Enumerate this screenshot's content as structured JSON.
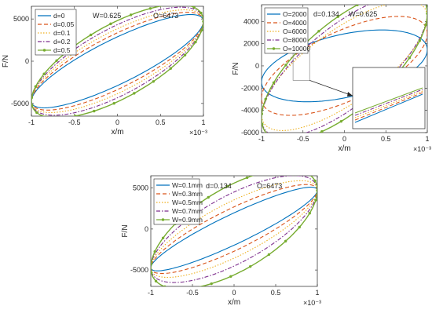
{
  "chart_data": [
    {
      "type": "line",
      "panel": "top-left",
      "xlabel": "x/m",
      "ylabel": "F/N",
      "x_exponent": "×10⁻³",
      "xlim": [
        -1,
        1
      ],
      "ylim": [
        -6500,
        6500
      ],
      "xticks": [
        -1,
        -0.5,
        0,
        0.5,
        1
      ],
      "yticks": [
        -5000,
        0,
        5000
      ],
      "annotations": [
        "W=0.625",
        "O=6473"
      ],
      "legend_position": "top-left",
      "series": [
        {
          "name": "d=0",
          "color": "#0072BD",
          "style": "solid",
          "params": {
            "d": 0,
            "W": 0.625,
            "O": 6473
          }
        },
        {
          "name": "d=0.05",
          "color": "#D95319",
          "style": "dash",
          "params": {
            "d": 0.05,
            "W": 0.625,
            "O": 6473
          }
        },
        {
          "name": "d=0.1",
          "color": "#EDB120",
          "style": "dot",
          "params": {
            "d": 0.1,
            "W": 0.625,
            "O": 6473
          }
        },
        {
          "name": "d=0.2",
          "color": "#7E2F8E",
          "style": "dashdot",
          "params": {
            "d": 0.2,
            "W": 0.625,
            "O": 6473
          }
        },
        {
          "name": "d=0.5",
          "color": "#77AC30",
          "style": "solid-marker",
          "params": {
            "d": 0.5,
            "W": 0.625,
            "O": 6473
          }
        }
      ]
    },
    {
      "type": "line",
      "panel": "top-right",
      "xlabel": "x/m",
      "ylabel": "F/N",
      "x_exponent": "×10⁻³",
      "xlim": [
        -1,
        1
      ],
      "ylim": [
        -6000,
        5500
      ],
      "xticks": [
        -1,
        -0.5,
        0,
        0.5,
        1
      ],
      "yticks": [
        -6000,
        -4000,
        -2000,
        0,
        2000,
        4000
      ],
      "annotations": [
        "d=0.134",
        "W=0.625"
      ],
      "legend_position": "top-left",
      "inset": "zoom of region near x=-0.5, F=0",
      "series": [
        {
          "name": "O=2000",
          "color": "#0072BD",
          "style": "solid",
          "params": {
            "d": 0.134,
            "W": 0.625,
            "O": 2000
          }
        },
        {
          "name": "O=4000",
          "color": "#D95319",
          "style": "dash",
          "params": {
            "d": 0.134,
            "W": 0.625,
            "O": 4000
          }
        },
        {
          "name": "O=6000",
          "color": "#EDB120",
          "style": "dot",
          "params": {
            "d": 0.134,
            "W": 0.625,
            "O": 6000
          }
        },
        {
          "name": "O=8000",
          "color": "#7E2F8E",
          "style": "dashdot",
          "params": {
            "d": 0.134,
            "W": 0.625,
            "O": 8000
          }
        },
        {
          "name": "O=10000",
          "color": "#77AC30",
          "style": "solid-marker",
          "params": {
            "d": 0.134,
            "W": 0.625,
            "O": 10000
          }
        }
      ]
    },
    {
      "type": "line",
      "panel": "bottom",
      "xlabel": "x/m",
      "ylabel": "F/N",
      "x_exponent": "×10⁻³",
      "xlim": [
        -1,
        1
      ],
      "ylim": [
        -7000,
        6500
      ],
      "xticks": [
        -1,
        -0.5,
        0,
        0.5,
        1
      ],
      "yticks": [
        -5000,
        0,
        5000
      ],
      "annotations": [
        "d=0.134",
        "O=6473"
      ],
      "legend_position": "top-left",
      "series": [
        {
          "name": "W=0.1mm",
          "color": "#0072BD",
          "style": "solid",
          "params": {
            "d": 0.134,
            "W": 0.1,
            "O": 6473
          }
        },
        {
          "name": "W=0.3mm",
          "color": "#D95319",
          "style": "dash",
          "params": {
            "d": 0.134,
            "W": 0.3,
            "O": 6473
          }
        },
        {
          "name": "W=0.5mm",
          "color": "#EDB120",
          "style": "dot",
          "params": {
            "d": 0.134,
            "W": 0.5,
            "O": 6473
          }
        },
        {
          "name": "W=0.7mm",
          "color": "#7E2F8E",
          "style": "dashdot",
          "params": {
            "d": 0.134,
            "W": 0.7,
            "O": 6473
          }
        },
        {
          "name": "W=0.9mm",
          "color": "#77AC30",
          "style": "solid-marker",
          "params": {
            "d": 0.134,
            "W": 0.9,
            "O": 6473
          }
        }
      ]
    }
  ]
}
